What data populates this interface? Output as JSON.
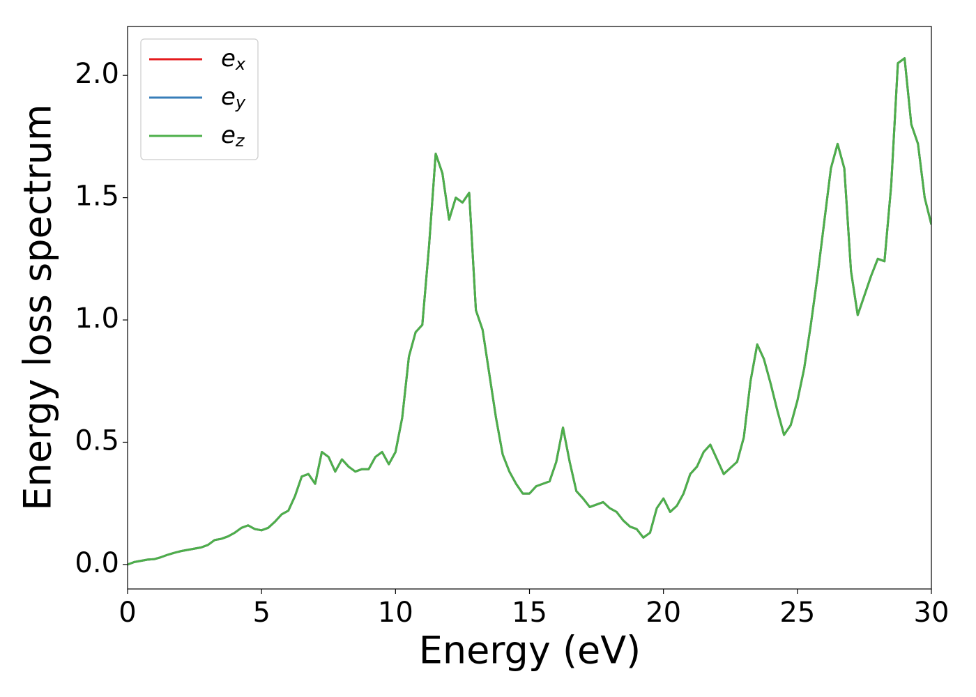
{
  "chart_data": {
    "type": "line",
    "xlabel": "Energy (eV)",
    "ylabel": "Energy loss spectrum",
    "x": [
      0,
      0.25,
      0.5,
      0.75,
      1,
      1.25,
      1.5,
      1.75,
      2,
      2.25,
      2.5,
      2.75,
      3,
      3.25,
      3.5,
      3.75,
      4,
      4.25,
      4.5,
      4.75,
      5,
      5.25,
      5.5,
      5.75,
      6,
      6.25,
      6.5,
      6.75,
      7,
      7.25,
      7.5,
      7.75,
      8,
      8.25,
      8.5,
      8.75,
      9,
      9.25,
      9.5,
      9.75,
      10,
      10.25,
      10.5,
      10.75,
      11,
      11.25,
      11.5,
      11.75,
      12,
      12.25,
      12.5,
      12.75,
      13,
      13.25,
      13.5,
      13.75,
      14,
      14.25,
      14.5,
      14.75,
      15,
      15.25,
      15.5,
      15.75,
      16,
      16.25,
      16.5,
      16.75,
      17,
      17.25,
      17.5,
      17.75,
      18,
      18.25,
      18.5,
      18.75,
      19,
      19.25,
      19.5,
      19.75,
      20,
      20.25,
      20.5,
      20.75,
      21,
      21.25,
      21.5,
      21.75,
      22,
      22.25,
      22.5,
      22.75,
      23,
      23.25,
      23.5,
      23.75,
      24,
      24.25,
      24.5,
      24.75,
      25,
      25.25,
      25.5,
      25.75,
      26,
      26.25,
      26.5,
      26.75,
      27,
      27.25,
      27.5,
      27.75,
      28,
      28.25,
      28.5,
      28.75,
      29,
      29.25,
      29.5,
      29.75,
      30
    ],
    "series": [
      {
        "name": "ex",
        "color": "#e41a1c",
        "values": [
          0,
          0.01,
          0.015,
          0.02,
          0.022,
          0.03,
          0.04,
          0.048,
          0.055,
          0.06,
          0.065,
          0.07,
          0.08,
          0.1,
          0.105,
          0.115,
          0.13,
          0.15,
          0.16,
          0.145,
          0.14,
          0.15,
          0.175,
          0.205,
          0.22,
          0.28,
          0.36,
          0.37,
          0.33,
          0.46,
          0.44,
          0.38,
          0.43,
          0.4,
          0.38,
          0.39,
          0.39,
          0.44,
          0.46,
          0.41,
          0.46,
          0.6,
          0.85,
          0.95,
          0.98,
          1.3,
          1.68,
          1.6,
          1.41,
          1.5,
          1.48,
          1.52,
          1.04,
          0.96,
          0.78,
          0.6,
          0.45,
          0.38,
          0.33,
          0.29,
          0.29,
          0.32,
          0.33,
          0.34,
          0.42,
          0.56,
          0.42,
          0.3,
          0.27,
          0.235,
          0.245,
          0.255,
          0.23,
          0.215,
          0.18,
          0.155,
          0.145,
          0.11,
          0.13,
          0.23,
          0.27,
          0.215,
          0.24,
          0.29,
          0.37,
          0.4,
          0.46,
          0.49,
          0.43,
          0.37,
          0.395,
          0.42,
          0.52,
          0.75,
          0.9,
          0.84,
          0.74,
          0.63,
          0.53,
          0.57,
          0.67,
          0.8,
          0.98,
          1.18,
          1.4,
          1.62,
          1.72,
          1.62,
          1.2,
          1.02,
          1.1,
          1.18,
          1.25,
          1.24,
          1.55,
          2.05,
          2.07,
          1.8,
          1.72,
          1.5,
          1.39
        ]
      },
      {
        "name": "ey",
        "color": "#377eb8",
        "values": [
          0,
          0.01,
          0.015,
          0.02,
          0.022,
          0.03,
          0.04,
          0.048,
          0.055,
          0.06,
          0.065,
          0.07,
          0.08,
          0.1,
          0.105,
          0.115,
          0.13,
          0.15,
          0.16,
          0.145,
          0.14,
          0.15,
          0.175,
          0.205,
          0.22,
          0.28,
          0.36,
          0.37,
          0.33,
          0.46,
          0.44,
          0.38,
          0.43,
          0.4,
          0.38,
          0.39,
          0.39,
          0.44,
          0.46,
          0.41,
          0.46,
          0.6,
          0.85,
          0.95,
          0.98,
          1.3,
          1.68,
          1.6,
          1.41,
          1.5,
          1.48,
          1.52,
          1.04,
          0.96,
          0.78,
          0.6,
          0.45,
          0.38,
          0.33,
          0.29,
          0.29,
          0.32,
          0.33,
          0.34,
          0.42,
          0.56,
          0.42,
          0.3,
          0.27,
          0.235,
          0.245,
          0.255,
          0.23,
          0.215,
          0.18,
          0.155,
          0.145,
          0.11,
          0.13,
          0.23,
          0.27,
          0.215,
          0.24,
          0.29,
          0.37,
          0.4,
          0.46,
          0.49,
          0.43,
          0.37,
          0.395,
          0.42,
          0.52,
          0.75,
          0.9,
          0.84,
          0.74,
          0.63,
          0.53,
          0.57,
          0.67,
          0.8,
          0.98,
          1.18,
          1.4,
          1.62,
          1.72,
          1.62,
          1.2,
          1.02,
          1.1,
          1.18,
          1.25,
          1.24,
          1.55,
          2.05,
          2.07,
          1.8,
          1.72,
          1.5,
          1.39
        ]
      },
      {
        "name": "ez",
        "color": "#4daf4a",
        "values": [
          0,
          0.01,
          0.015,
          0.02,
          0.022,
          0.03,
          0.04,
          0.048,
          0.055,
          0.06,
          0.065,
          0.07,
          0.08,
          0.1,
          0.105,
          0.115,
          0.13,
          0.15,
          0.16,
          0.145,
          0.14,
          0.15,
          0.175,
          0.205,
          0.22,
          0.28,
          0.36,
          0.37,
          0.33,
          0.46,
          0.44,
          0.38,
          0.43,
          0.4,
          0.38,
          0.39,
          0.39,
          0.44,
          0.46,
          0.41,
          0.46,
          0.6,
          0.85,
          0.95,
          0.98,
          1.3,
          1.68,
          1.6,
          1.41,
          1.5,
          1.48,
          1.52,
          1.04,
          0.96,
          0.78,
          0.6,
          0.45,
          0.38,
          0.33,
          0.29,
          0.29,
          0.32,
          0.33,
          0.34,
          0.42,
          0.56,
          0.42,
          0.3,
          0.27,
          0.235,
          0.245,
          0.255,
          0.23,
          0.215,
          0.18,
          0.155,
          0.145,
          0.11,
          0.13,
          0.23,
          0.27,
          0.215,
          0.24,
          0.29,
          0.37,
          0.4,
          0.46,
          0.49,
          0.43,
          0.37,
          0.395,
          0.42,
          0.52,
          0.75,
          0.9,
          0.84,
          0.74,
          0.63,
          0.53,
          0.57,
          0.67,
          0.8,
          0.98,
          1.18,
          1.4,
          1.62,
          1.72,
          1.62,
          1.2,
          1.02,
          1.1,
          1.18,
          1.25,
          1.24,
          1.55,
          2.05,
          2.07,
          1.8,
          1.72,
          1.5,
          1.39
        ]
      }
    ],
    "xlim": [
      0,
      30
    ],
    "xticks": [
      0,
      5,
      10,
      15,
      20,
      25,
      30
    ],
    "ylim": [
      -0.1,
      2.2
    ],
    "yticks": [
      {
        "value": 0,
        "label": "0.0"
      },
      0.5,
      {
        "value": 1,
        "label": "1.0"
      },
      1.5,
      {
        "value": 2,
        "label": "2.0"
      }
    ],
    "legend": "upper left",
    "grid": false
  }
}
